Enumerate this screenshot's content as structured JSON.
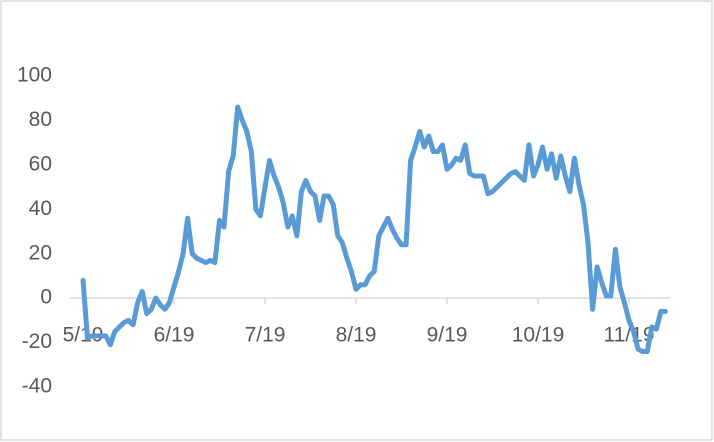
{
  "chart_data": {
    "type": "line",
    "color": "#5b9bd5",
    "categories": [
      "5/19",
      null,
      null,
      null,
      null,
      null,
      null,
      null,
      null,
      null,
      null,
      null,
      null,
      null,
      null,
      null,
      null,
      null,
      null,
      null,
      "6/19",
      null,
      null,
      null,
      null,
      null,
      null,
      null,
      null,
      null,
      null,
      null,
      null,
      null,
      null,
      null,
      null,
      null,
      null,
      null,
      "7/19",
      null,
      null,
      null,
      null,
      null,
      null,
      null,
      null,
      null,
      null,
      null,
      null,
      null,
      null,
      null,
      null,
      null,
      null,
      null,
      "8/19",
      null,
      null,
      null,
      null,
      null,
      null,
      null,
      null,
      null,
      null,
      null,
      null,
      null,
      null,
      null,
      null,
      null,
      null,
      null,
      "9/19",
      null,
      null,
      null,
      null,
      null,
      null,
      null,
      null,
      null,
      null,
      null,
      null,
      null,
      null,
      null,
      null,
      null,
      null,
      null,
      "10/19",
      null,
      null,
      null,
      null,
      null,
      null,
      null,
      null,
      null,
      null,
      null,
      null,
      null,
      null,
      null,
      null,
      null,
      null,
      null,
      "11/19",
      null,
      null,
      null,
      null,
      null,
      null,
      null,
      null
    ],
    "values": [
      8,
      -18,
      -17,
      -17,
      -17,
      -17,
      -21,
      -15,
      -13,
      -11,
      -10,
      -12,
      -2,
      3,
      -7,
      -5,
      0,
      -3,
      -5,
      -2,
      5,
      12,
      20,
      36,
      20,
      18,
      17,
      16,
      17,
      16,
      35,
      32,
      57,
      64,
      86,
      80,
      75,
      66,
      40,
      37,
      50,
      62,
      55,
      50,
      43,
      32,
      37,
      28,
      48,
      53,
      48,
      46,
      35,
      46,
      46,
      42,
      28,
      25,
      18,
      12,
      4,
      6,
      6,
      10,
      12,
      28,
      32,
      36,
      31,
      27,
      24,
      24,
      62,
      68,
      75,
      68,
      73,
      66,
      66,
      69,
      58,
      60,
      63,
      62,
      69,
      56,
      55,
      55,
      55,
      47,
      48,
      50,
      52,
      54,
      56,
      57,
      55,
      53,
      69,
      55,
      60,
      68,
      58,
      65,
      54,
      64,
      55,
      48,
      63,
      51,
      42,
      25,
      -5,
      14,
      7,
      1,
      1,
      22,
      5,
      -2,
      -10,
      -15,
      -23,
      -24,
      -24,
      -13,
      -14,
      -6,
      -6
    ],
    "ylim": [
      -40,
      100
    ],
    "yticks": [
      -40,
      -20,
      0,
      20,
      40,
      60,
      80,
      100
    ],
    "grid": false
  }
}
